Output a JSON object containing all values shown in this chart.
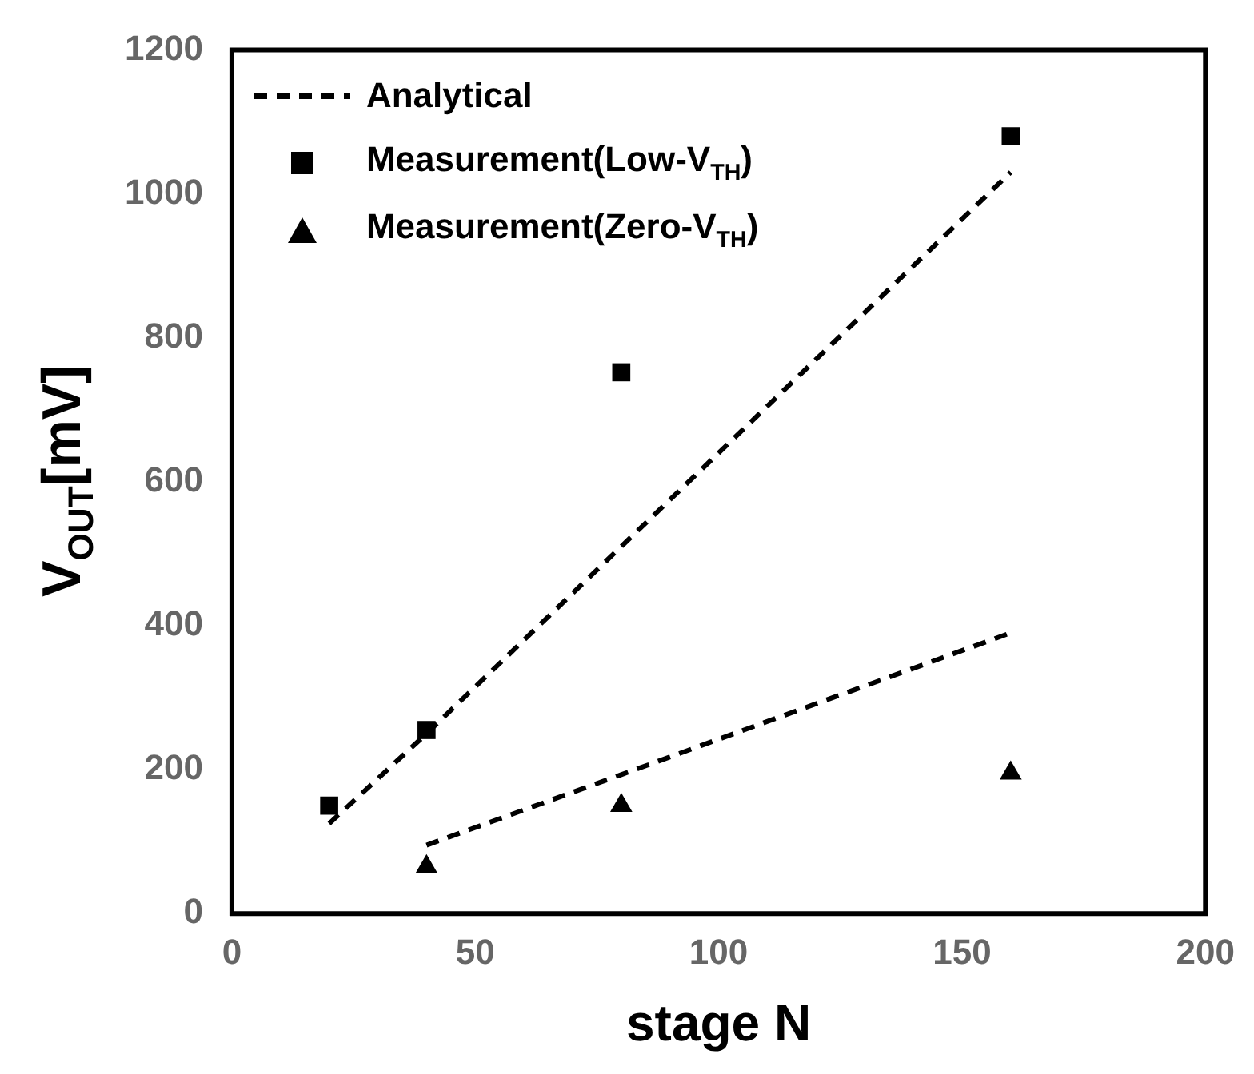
{
  "chart_data": {
    "type": "scatter",
    "xlabel": "stage N",
    "ylabel": "V$_{OUT}$[mV]",
    "xlim": [
      0,
      200
    ],
    "xticks": [
      0,
      50,
      100,
      150,
      200
    ],
    "ylim": [
      0,
      1200
    ],
    "yticks": [
      0,
      200,
      400,
      600,
      800,
      1000,
      1200
    ],
    "grid": false,
    "legend": "top left",
    "series": [
      {
        "name": "Analytical",
        "type": "line",
        "line_style": "dashed",
        "marker": "none",
        "color": "#000000",
        "x": [
          20,
          40,
          160
        ],
        "values": [
          125,
          250,
          1030
        ]
      },
      {
        "type": "line",
        "line_style": "dashed",
        "marker": "none",
        "color": "#000000",
        "x": [
          40,
          80,
          160
        ],
        "values": [
          95,
          193,
          390
        ]
      },
      {
        "name": "Measurement(Low-V$_{TH}$)",
        "type": "scatter",
        "marker": "square",
        "color": "#000000",
        "x": [
          20,
          40,
          80,
          160
        ],
        "values": [
          150,
          255,
          752,
          1080
        ]
      },
      {
        "name": "Measurement(Zero-V$_{TH}$)",
        "type": "scatter",
        "marker": "triangle",
        "color": "#000000",
        "x": [
          40,
          80,
          160
        ],
        "values": [
          65,
          150,
          195
        ]
      }
    ]
  }
}
